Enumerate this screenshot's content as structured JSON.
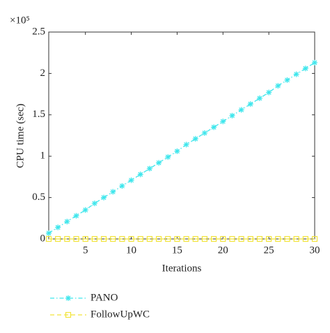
{
  "chart_data": {
    "type": "line",
    "y_label": "CPU time (sec)",
    "x_label": "Iterations",
    "y_multiplier": "×10⁵",
    "x": [
      1,
      2,
      3,
      4,
      5,
      6,
      7,
      8,
      9,
      10,
      11,
      12,
      13,
      14,
      15,
      16,
      17,
      18,
      19,
      20,
      21,
      22,
      23,
      24,
      25,
      26,
      27,
      28,
      29,
      30
    ],
    "series": [
      {
        "name": "PANO",
        "color": "#3ee6ec",
        "marker": "asterisk",
        "dash": "dashdot",
        "values": [
          0.07,
          0.14,
          0.21,
          0.28,
          0.35,
          0.43,
          0.5,
          0.57,
          0.64,
          0.71,
          0.78,
          0.85,
          0.92,
          0.99,
          1.06,
          1.14,
          1.21,
          1.28,
          1.35,
          1.42,
          1.49,
          1.56,
          1.63,
          1.7,
          1.77,
          1.85,
          1.92,
          1.99,
          2.06,
          2.13
        ]
      },
      {
        "name": "FollowUpWC",
        "color": "#f2e43a",
        "marker": "square",
        "dash": "dashed",
        "values": [
          0,
          0,
          0,
          0,
          0,
          0,
          0,
          0,
          0,
          0,
          0,
          0,
          0,
          0,
          0,
          0,
          0,
          0,
          0,
          0,
          0,
          0,
          0,
          0,
          0,
          0,
          0,
          0,
          0,
          0
        ]
      }
    ],
    "xlim": [
      1,
      30
    ],
    "xticks": [
      5,
      10,
      15,
      20,
      25,
      30
    ],
    "ylim": [
      0,
      2.5
    ],
    "yticks": [
      0,
      0.5,
      1,
      1.5,
      2,
      2.5
    ],
    "grid": false,
    "legend": "bottom"
  }
}
